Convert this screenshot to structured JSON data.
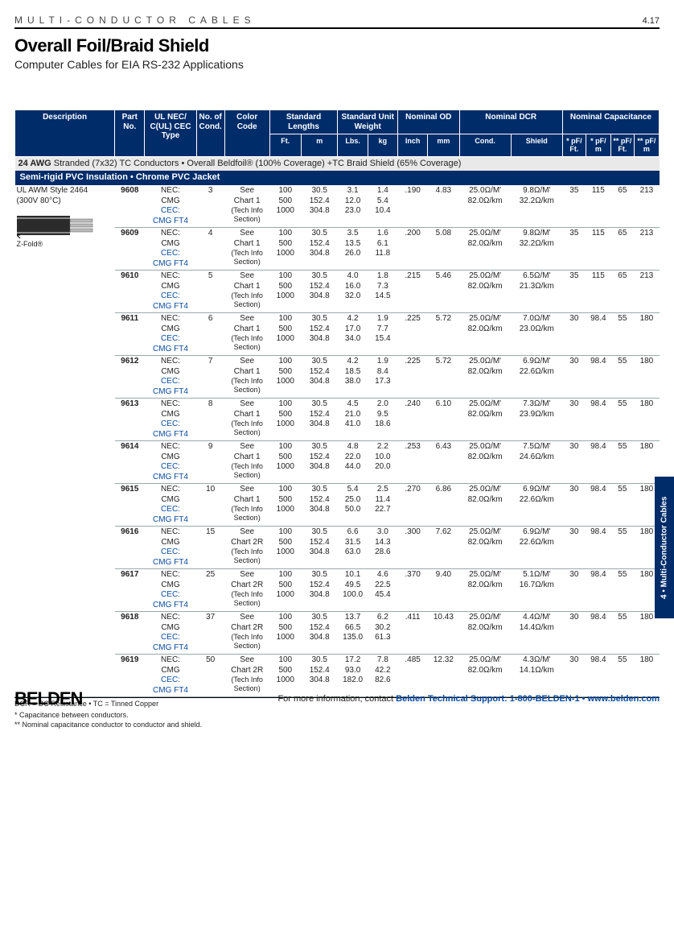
{
  "topbar": {
    "category": "MULTI-CONDUCTOR CABLES",
    "pagenum": "4.17"
  },
  "titles": {
    "h1": "Overall Foil/Braid Shield",
    "h2": "Computer Cables for EIA RS-232 Applications"
  },
  "thead": {
    "desc": "Description",
    "part": "Part No.",
    "ul": "UL NEC/ C(UL) CEC Type",
    "ncond": "No. of Cond.",
    "color": "Color Code",
    "stdlen": "Standard Lengths",
    "stdlen_ft": "Ft.",
    "stdlen_m": "m",
    "stdwt": "Standard Unit Weight",
    "stdwt_lb": "Lbs.",
    "stdwt_kg": "kg",
    "od": "Nominal OD",
    "od_in": "Inch",
    "od_mm": "mm",
    "dcr": "Nominal DCR",
    "dcr_cond": "Cond.",
    "dcr_sh": "Shield",
    "cap": "Nominal Capacitance",
    "cap1": "* pF/ Ft.",
    "cap2": "* pF/ m",
    "cap3": "** pF/ Ft.",
    "cap4": "** pF/ m"
  },
  "section_note": {
    "pre": "24 AWG",
    "rest": " Stranded (7x32) TC Conductors • Overall Beldfoil® (100% Coverage) +TC Braid Shield (65% Coverage)"
  },
  "sub_header": "Semi-rigid PVC Insulation • Chrome PVC Jacket",
  "desc_col": {
    "styleline": "UL AWM Style 2464 (300V 80°C)",
    "zfold": "Z-Fold®"
  },
  "ul_lines": {
    "l1": "NEC:",
    "l2": "CMG",
    "l3": "CEC:",
    "l4": "CMG FT4"
  },
  "cc1": {
    "a": "See",
    "b": "Chart 1",
    "c": "(Tech Info",
    "d": "Section)"
  },
  "cc2": {
    "a": "See",
    "b": "Chart 2R",
    "c": "(Tech Info",
    "d": "Section)"
  },
  "len": {
    "ft": [
      "100",
      "500",
      "1000"
    ],
    "m": [
      "30.5",
      "152.4",
      "304.8"
    ]
  },
  "dcr_cond": {
    "a": "25.0Ω/M'",
    "b": "82.0Ω/km"
  },
  "rows": [
    {
      "first": true,
      "part": "9608",
      "nc": "3",
      "cc": "cc1",
      "wt_lb": [
        "3.1",
        "12.0",
        "23.0"
      ],
      "wt_kg": [
        "1.4",
        "5.4",
        "10.4"
      ],
      "od_in": ".190",
      "od_mm": "4.83",
      "dcr_sh": [
        "9.8Ω/M'",
        "32.2Ω/km"
      ],
      "cap": [
        "35",
        "115",
        "65",
        "213"
      ]
    },
    {
      "part": "9609",
      "nc": "4",
      "cc": "cc1",
      "wt_lb": [
        "3.5",
        "13.5",
        "26.0"
      ],
      "wt_kg": [
        "1.6",
        "6.1",
        "11.8"
      ],
      "od_in": ".200",
      "od_mm": "5.08",
      "dcr_sh": [
        "9.8Ω/M'",
        "32.2Ω/km"
      ],
      "cap": [
        "35",
        "115",
        "65",
        "213"
      ]
    },
    {
      "part": "9610",
      "nc": "5",
      "cc": "cc1",
      "wt_lb": [
        "4.0",
        "16.0",
        "32.0"
      ],
      "wt_kg": [
        "1.8",
        "7.3",
        "14.5"
      ],
      "od_in": ".215",
      "od_mm": "5.46",
      "dcr_sh": [
        "6.5Ω/M'",
        "21.3Ω/km"
      ],
      "cap": [
        "35",
        "115",
        "65",
        "213"
      ]
    },
    {
      "part": "9611",
      "nc": "6",
      "cc": "cc1",
      "wt_lb": [
        "4.2",
        "17.0",
        "34.0"
      ],
      "wt_kg": [
        "1.9",
        "7.7",
        "15.4"
      ],
      "od_in": ".225",
      "od_mm": "5.72",
      "dcr_sh": [
        "7.0Ω/M'",
        "23.0Ω/km"
      ],
      "cap": [
        "30",
        "98.4",
        "55",
        "180"
      ]
    },
    {
      "part": "9612",
      "nc": "7",
      "cc": "cc1",
      "wt_lb": [
        "4.2",
        "18.5",
        "38.0"
      ],
      "wt_kg": [
        "1.9",
        "8.4",
        "17.3"
      ],
      "od_in": ".225",
      "od_mm": "5.72",
      "dcr_sh": [
        "6.9Ω/M'",
        "22.6Ω/km"
      ],
      "cap": [
        "30",
        "98.4",
        "55",
        "180"
      ]
    },
    {
      "part": "9613",
      "nc": "8",
      "cc": "cc1",
      "wt_lb": [
        "4.5",
        "21.0",
        "41.0"
      ],
      "wt_kg": [
        "2.0",
        "9.5",
        "18.6"
      ],
      "od_in": ".240",
      "od_mm": "6.10",
      "dcr_sh": [
        "7.3Ω/M'",
        "23.9Ω/km"
      ],
      "cap": [
        "30",
        "98.4",
        "55",
        "180"
      ]
    },
    {
      "part": "9614",
      "nc": "9",
      "cc": "cc1",
      "wt_lb": [
        "4.8",
        "22.0",
        "44.0"
      ],
      "wt_kg": [
        "2.2",
        "10.0",
        "20.0"
      ],
      "od_in": ".253",
      "od_mm": "6.43",
      "dcr_sh": [
        "7.5Ω/M'",
        "24.6Ω/km"
      ],
      "cap": [
        "30",
        "98.4",
        "55",
        "180"
      ]
    },
    {
      "part": "9615",
      "nc": "10",
      "cc": "cc1",
      "wt_lb": [
        "5.4",
        "25.0",
        "50.0"
      ],
      "wt_kg": [
        "2.5",
        "11.4",
        "22.7"
      ],
      "od_in": ".270",
      "od_mm": "6.86",
      "dcr_sh": [
        "6.9Ω/M'",
        "22.6Ω/km"
      ],
      "cap": [
        "30",
        "98.4",
        "55",
        "180"
      ]
    },
    {
      "part": "9616",
      "nc": "15",
      "cc": "cc2",
      "wt_lb": [
        "6.6",
        "31.5",
        "63.0"
      ],
      "wt_kg": [
        "3.0",
        "14.3",
        "28.6"
      ],
      "od_in": ".300",
      "od_mm": "7.62",
      "dcr_sh": [
        "6.9Ω/M'",
        "22.6Ω/km"
      ],
      "cap": [
        "30",
        "98.4",
        "55",
        "180"
      ]
    },
    {
      "part": "9617",
      "nc": "25",
      "cc": "cc2",
      "wt_lb": [
        "10.1",
        "49.5",
        "100.0"
      ],
      "wt_kg": [
        "4.6",
        "22.5",
        "45.4"
      ],
      "od_in": ".370",
      "od_mm": "9.40",
      "dcr_sh": [
        "5.1Ω/M'",
        "16.7Ω/km"
      ],
      "cap": [
        "30",
        "98.4",
        "55",
        "180"
      ]
    },
    {
      "part": "9618",
      "nc": "37",
      "cc": "cc2",
      "wt_lb": [
        "13.7",
        "66.5",
        "135.0"
      ],
      "wt_kg": [
        "6.2",
        "30.2",
        "61.3"
      ],
      "od_in": ".411",
      "od_mm": "10.43",
      "dcr_sh": [
        "4.4Ω/M'",
        "14.4Ω/km"
      ],
      "cap": [
        "30",
        "98.4",
        "55",
        "180"
      ]
    },
    {
      "part": "9619",
      "nc": "50",
      "cc": "cc2",
      "wt_lb": [
        "17.2",
        "93.0",
        "182.0"
      ],
      "wt_kg": [
        "7.8",
        "42.2",
        "82.6"
      ],
      "od_in": ".485",
      "od_mm": "12.32",
      "dcr_sh": [
        "4.3Ω/M'",
        "14.1Ω/km"
      ],
      "cap": [
        "30",
        "98.4",
        "55",
        "180"
      ]
    }
  ],
  "footnotes": {
    "a": "DCR = DC Resistance • TC = Tinned Copper",
    "b": "* Capacitance between conductors.",
    "c": "** Nominal capacitance conductor to conductor and shield."
  },
  "footer": {
    "logo": "BELDEN",
    "pre": "For more information, contact ",
    "blue1": "Belden Technical Support: ",
    "phone": "1-800-BELDEN-1",
    "sep": " • ",
    "url": "www.belden.com"
  },
  "sidetab": "4 • Multi-Conductor Cables"
}
